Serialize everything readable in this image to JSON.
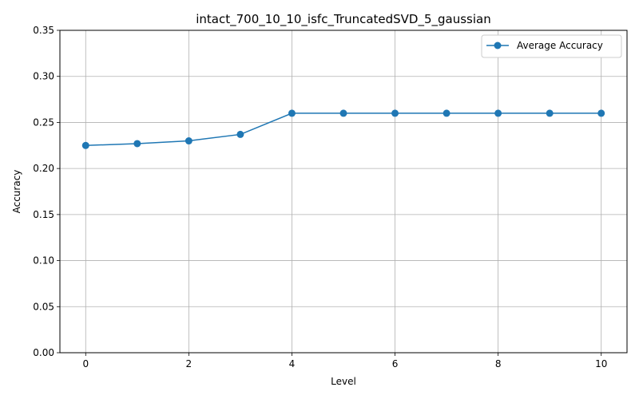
{
  "chart_data": {
    "type": "line",
    "title": "intact_700_10_10_isfc_TruncatedSVD_5_gaussian",
    "xlabel": "Level",
    "ylabel": "Accuracy",
    "xlim": [
      -0.5,
      10.5
    ],
    "ylim": [
      0,
      0.35
    ],
    "xticks": [
      0,
      2,
      4,
      6,
      8,
      10
    ],
    "yticks": [
      0.0,
      0.05,
      0.1,
      0.15,
      0.2,
      0.25,
      0.3,
      0.35
    ],
    "ytick_labels": [
      "0.00",
      "0.05",
      "0.10",
      "0.15",
      "0.20",
      "0.25",
      "0.30",
      "0.35"
    ],
    "grid": true,
    "legend_position": "top-right",
    "series": [
      {
        "name": "Average Accuracy",
        "color": "#1f77b4",
        "marker": "circle",
        "x": [
          0,
          1,
          2,
          3,
          4,
          5,
          6,
          7,
          8,
          9,
          10
        ],
        "y": [
          0.225,
          0.227,
          0.23,
          0.237,
          0.26,
          0.26,
          0.26,
          0.26,
          0.26,
          0.26,
          0.26
        ]
      }
    ]
  }
}
